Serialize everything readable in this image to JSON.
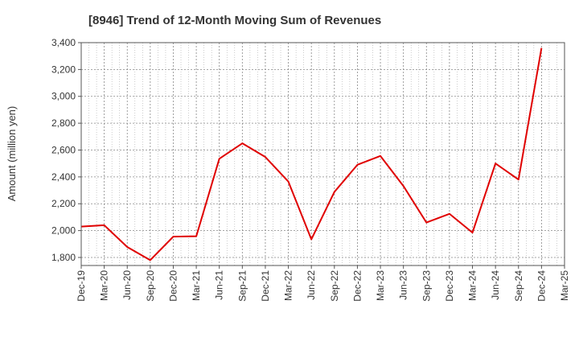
{
  "chart_data": {
    "type": "line",
    "title": "[8946]  Trend of 12-Month Moving Sum of Revenues",
    "ylabel": "Amount (million yen)",
    "xlabel": "",
    "ylim": [
      1740,
      3400
    ],
    "yticks": [
      1800,
      2000,
      2200,
      2400,
      2600,
      2800,
      3000,
      3200,
      3400
    ],
    "ytick_labels": [
      "1,800",
      "2,000",
      "2,200",
      "2,400",
      "2,600",
      "2,800",
      "3,000",
      "3,200",
      "3,400"
    ],
    "xtick_labels": [
      "Dec-19",
      "Mar-20",
      "Jun-20",
      "Sep-20",
      "Dec-20",
      "Mar-21",
      "Jun-21",
      "Sep-21",
      "Dec-21",
      "Mar-22",
      "Jun-22",
      "Sep-22",
      "Dec-22",
      "Mar-23",
      "Jun-23",
      "Sep-23",
      "Dec-23",
      "Mar-24",
      "Jun-24",
      "Sep-24",
      "Dec-24",
      "Mar-25"
    ],
    "grid": true,
    "series": [
      {
        "color": "#e00000",
        "x": [
          "Dec-19",
          "Mar-20",
          "Jun-20",
          "Sep-20",
          "Dec-20",
          "Mar-21",
          "Jun-21",
          "Sep-21",
          "Dec-21",
          "Mar-22",
          "Jun-22",
          "Sep-22",
          "Dec-22",
          "Mar-23",
          "Jun-23",
          "Sep-23",
          "Dec-23",
          "Mar-24",
          "Jun-24",
          "Sep-24",
          "Dec-24"
        ],
        "values": [
          2030,
          2040,
          1878,
          1780,
          1955,
          1958,
          2535,
          2650,
          2548,
          2365,
          1935,
          2288,
          2490,
          2556,
          2332,
          2060,
          2125,
          1985,
          2500,
          2380,
          3360
        ]
      }
    ]
  }
}
